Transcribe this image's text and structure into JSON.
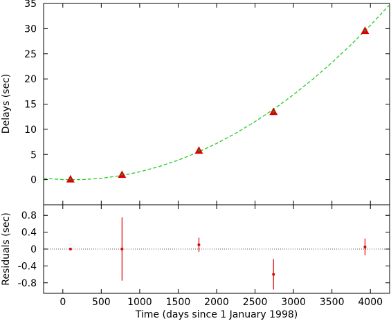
{
  "chart_data": [
    {
      "type": "scatter",
      "panel": "top",
      "title": "",
      "xlabel": "",
      "ylabel": "Delays (sec)",
      "xlim": [
        -250,
        4250
      ],
      "ylim": [
        -5,
        35
      ],
      "x_ticks": [],
      "y_ticks": [
        0,
        5,
        10,
        15,
        20,
        25,
        30,
        35
      ],
      "grid": false,
      "series": [
        {
          "kind": "points",
          "marker": "triangle",
          "color": "#dd0000",
          "points": [
            {
              "x": 100,
              "y": 0.1
            },
            {
              "x": 770,
              "y": 1.0
            },
            {
              "x": 1770,
              "y": 5.8
            },
            {
              "x": 2740,
              "y": 13.5
            },
            {
              "x": 3930,
              "y": 29.6
            }
          ]
        },
        {
          "kind": "fit-curve",
          "style": "dashed",
          "color": "#22cc22",
          "points": [
            {
              "x": -250,
              "y": 0.26
            },
            {
              "x": 0,
              "y": 0.0
            },
            {
              "x": 250,
              "y": 0.0
            },
            {
              "x": 500,
              "y": 0.26
            },
            {
              "x": 750,
              "y": 0.78
            },
            {
              "x": 1000,
              "y": 1.55
            },
            {
              "x": 1250,
              "y": 2.58
            },
            {
              "x": 1500,
              "y": 3.86
            },
            {
              "x": 1750,
              "y": 5.39
            },
            {
              "x": 2000,
              "y": 7.18
            },
            {
              "x": 2250,
              "y": 9.22
            },
            {
              "x": 2500,
              "y": 11.52
            },
            {
              "x": 2750,
              "y": 14.07
            },
            {
              "x": 3000,
              "y": 16.88
            },
            {
              "x": 3250,
              "y": 19.94
            },
            {
              "x": 3500,
              "y": 23.26
            },
            {
              "x": 3750,
              "y": 26.83
            },
            {
              "x": 4000,
              "y": 30.66
            },
            {
              "x": 4250,
              "y": 34.74
            }
          ]
        }
      ]
    },
    {
      "type": "scatter",
      "panel": "bottom",
      "title": "",
      "xlabel": "Time (days since 1 January 1998)",
      "ylabel": "Residuals (sec)",
      "xlim": [
        -250,
        4250
      ],
      "ylim": [
        -1.05,
        1.05
      ],
      "x_ticks": [
        0,
        500,
        1000,
        1500,
        2000,
        2500,
        3000,
        3500,
        4000
      ],
      "y_ticks": [
        {
          "value": 0.8,
          "label": "0.8"
        },
        {
          "value": 0.4,
          "label": "0.4"
        },
        {
          "value": 0,
          "label": "0"
        },
        {
          "value": -0.4,
          "label": "-0.4"
        },
        {
          "value": -0.8,
          "label": "-0.8"
        }
      ],
      "grid": false,
      "reference_line": {
        "y": 0,
        "style": "dotted"
      },
      "series": [
        {
          "kind": "points-with-errorbars",
          "color": "#dd0000",
          "points": [
            {
              "x": 100,
              "y": 0.0,
              "err": 0.02
            },
            {
              "x": 770,
              "y": 0.0,
              "err": 0.75
            },
            {
              "x": 1770,
              "y": 0.1,
              "err": 0.17
            },
            {
              "x": 2740,
              "y": -0.6,
              "err": 0.36
            },
            {
              "x": 3930,
              "y": 0.05,
              "err": 0.2
            }
          ]
        }
      ]
    }
  ]
}
